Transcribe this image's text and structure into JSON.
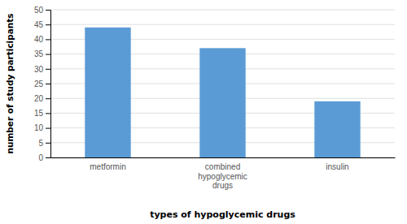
{
  "chart_data": {
    "type": "bar",
    "categories": [
      "metformin",
      "combined\nhypoglycemic\ndrugs",
      "insulin"
    ],
    "values": [
      44,
      37,
      19
    ],
    "color": "#5B9BD5",
    "xlabel": "types of hypoglycemic drugs",
    "ylabel": "number of study participants",
    "ylim": [
      0,
      50
    ],
    "yticks": [
      0,
      5,
      10,
      15,
      20,
      25,
      30,
      35,
      40,
      45,
      50
    ],
    "grid": true
  }
}
